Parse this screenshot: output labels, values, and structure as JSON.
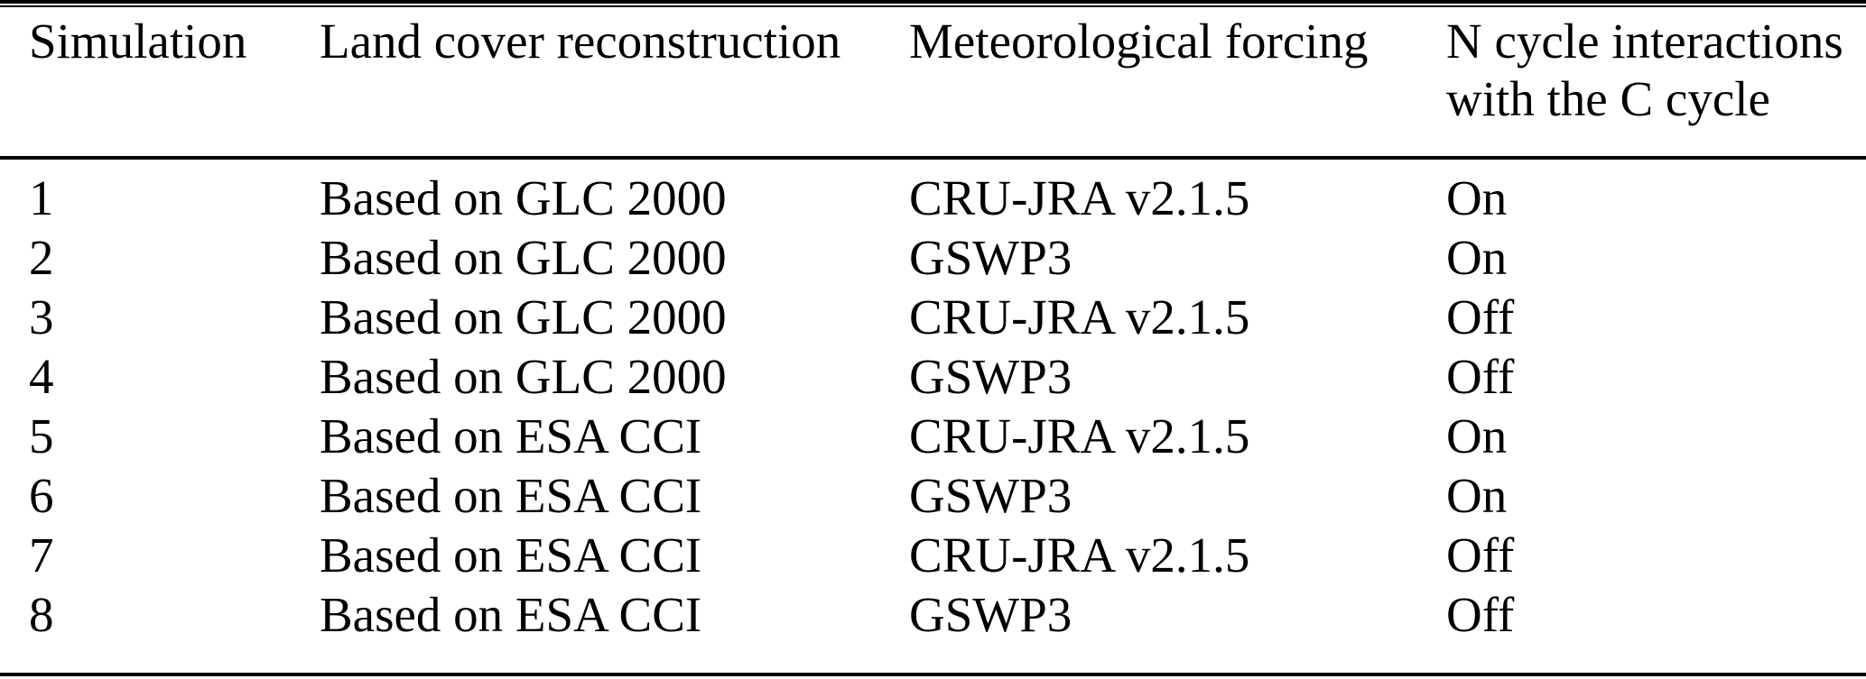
{
  "table": {
    "columns": [
      "Simulation",
      "Land cover reconstruction",
      "Meteorological forcing",
      "N cycle interactions with the C cycle"
    ],
    "rows": [
      [
        "1",
        "Based on GLC 2000",
        "CRU-JRA v2.1.5",
        "On"
      ],
      [
        "2",
        "Based on GLC 2000",
        "GSWP3",
        "On"
      ],
      [
        "3",
        "Based on GLC 2000",
        "CRU-JRA v2.1.5",
        "Off"
      ],
      [
        "4",
        "Based on GLC 2000",
        "GSWP3",
        "Off"
      ],
      [
        "5",
        "Based on ESA CCI",
        "CRU-JRA v2.1.5",
        "On"
      ],
      [
        "6",
        "Based on ESA CCI",
        "GSWP3",
        "On"
      ],
      [
        "7",
        "Based on ESA CCI",
        "CRU-JRA v2.1.5",
        "Off"
      ],
      [
        "8",
        "Based on ESA CCI",
        "GSWP3",
        "Off"
      ]
    ]
  },
  "colors": {
    "text": "#000000",
    "background": "#ffffff",
    "rule": "#000000"
  }
}
